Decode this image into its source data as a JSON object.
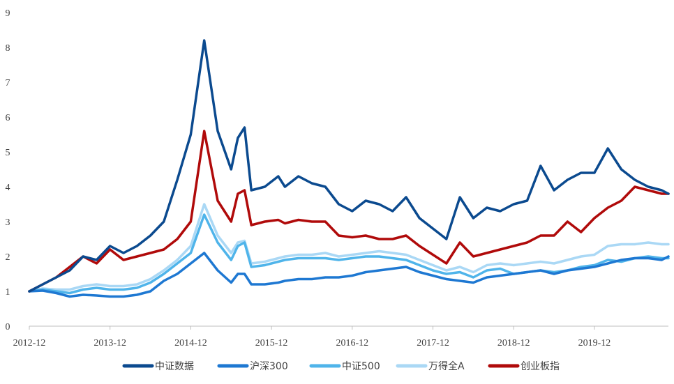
{
  "chart_data": {
    "type": "line",
    "title": "",
    "xlabel": "",
    "ylabel": "",
    "ylim": [
      0,
      9
    ],
    "yticks": [
      "0",
      "1",
      "2",
      "3",
      "4",
      "5",
      "6",
      "7",
      "8",
      "9"
    ],
    "x_range": [
      "2012-12",
      "2020-11"
    ],
    "xticks": [
      "2012-12",
      "2013-12",
      "2014-12",
      "2015-12",
      "2016-12",
      "2017-12",
      "2018-12",
      "2019-12"
    ],
    "grid": false,
    "legend": "bottom",
    "x": [
      "2012-12",
      "2013-02",
      "2013-04",
      "2013-06",
      "2013-08",
      "2013-10",
      "2013-12",
      "2014-02",
      "2014-04",
      "2014-06",
      "2014-08",
      "2014-10",
      "2014-12",
      "2015-02",
      "2015-04",
      "2015-06",
      "2015-07",
      "2015-08",
      "2015-09",
      "2015-11",
      "2016-01",
      "2016-02",
      "2016-04",
      "2016-06",
      "2016-08",
      "2016-10",
      "2016-12",
      "2017-02",
      "2017-04",
      "2017-06",
      "2017-08",
      "2017-10",
      "2017-12",
      "2018-02",
      "2018-04",
      "2018-06",
      "2018-08",
      "2018-10",
      "2018-12",
      "2019-02",
      "2019-04",
      "2019-06",
      "2019-08",
      "2019-10",
      "2019-12",
      "2020-02",
      "2020-04",
      "2020-06",
      "2020-08",
      "2020-10",
      "2020-11"
    ],
    "series": [
      {
        "name": "中证数据",
        "color": "#0B4A8F",
        "values": [
          1.0,
          1.2,
          1.4,
          1.6,
          2.0,
          1.9,
          2.3,
          2.1,
          2.3,
          2.6,
          3.0,
          4.2,
          5.5,
          8.2,
          5.6,
          4.5,
          5.4,
          5.7,
          3.9,
          4.0,
          4.3,
          4.0,
          4.3,
          4.1,
          4.0,
          3.5,
          3.3,
          3.6,
          3.5,
          3.3,
          3.7,
          3.1,
          2.8,
          2.5,
          3.7,
          3.1,
          3.4,
          3.3,
          3.5,
          3.6,
          4.6,
          3.9,
          4.2,
          4.4,
          4.4,
          5.1,
          4.5,
          4.2,
          4.0,
          3.9,
          3.8
        ]
      },
      {
        "name": "沪深300",
        "color": "#1E78D2",
        "values": [
          1.0,
          1.02,
          0.95,
          0.85,
          0.9,
          0.88,
          0.85,
          0.85,
          0.9,
          1.0,
          1.3,
          1.5,
          1.8,
          2.1,
          1.6,
          1.25,
          1.5,
          1.5,
          1.2,
          1.2,
          1.25,
          1.3,
          1.35,
          1.35,
          1.4,
          1.4,
          1.45,
          1.55,
          1.6,
          1.65,
          1.7,
          1.55,
          1.45,
          1.35,
          1.3,
          1.25,
          1.4,
          1.45,
          1.5,
          1.55,
          1.6,
          1.5,
          1.6,
          1.65,
          1.7,
          1.8,
          1.9,
          1.95,
          1.95,
          1.9,
          2.0
        ]
      },
      {
        "name": "中证500",
        "color": "#4FB4EA",
        "values": [
          1.0,
          1.05,
          1.0,
          0.95,
          1.05,
          1.1,
          1.05,
          1.05,
          1.1,
          1.25,
          1.5,
          1.8,
          2.1,
          3.2,
          2.4,
          1.9,
          2.3,
          2.4,
          1.7,
          1.75,
          1.85,
          1.9,
          1.95,
          1.95,
          1.95,
          1.9,
          1.95,
          2.0,
          2.0,
          1.95,
          1.9,
          1.75,
          1.6,
          1.5,
          1.55,
          1.4,
          1.6,
          1.65,
          1.5,
          1.55,
          1.6,
          1.55,
          1.6,
          1.7,
          1.75,
          1.9,
          1.85,
          1.95,
          2.0,
          1.95,
          1.95
        ]
      },
      {
        "name": "万得全A",
        "color": "#AAD8F5",
        "values": [
          1.0,
          1.08,
          1.05,
          1.05,
          1.15,
          1.2,
          1.15,
          1.15,
          1.2,
          1.35,
          1.6,
          1.9,
          2.3,
          3.5,
          2.6,
          2.1,
          2.4,
          2.45,
          1.8,
          1.85,
          1.95,
          2.0,
          2.05,
          2.05,
          2.1,
          2.0,
          2.05,
          2.1,
          2.15,
          2.1,
          2.05,
          1.9,
          1.75,
          1.6,
          1.7,
          1.55,
          1.75,
          1.8,
          1.75,
          1.8,
          1.85,
          1.8,
          1.9,
          2.0,
          2.05,
          2.3,
          2.35,
          2.35,
          2.4,
          2.35,
          2.35
        ]
      },
      {
        "name": "创业板指",
        "color": "#B00A0A",
        "values": [
          1.0,
          1.2,
          1.4,
          1.7,
          2.0,
          1.8,
          2.2,
          1.9,
          2.0,
          2.1,
          2.2,
          2.5,
          3.0,
          5.6,
          3.6,
          3.0,
          3.8,
          3.9,
          2.9,
          3.0,
          3.05,
          2.95,
          3.05,
          3.0,
          3.0,
          2.6,
          2.55,
          2.6,
          2.5,
          2.5,
          2.6,
          2.3,
          2.05,
          1.8,
          2.4,
          2.0,
          2.1,
          2.2,
          2.3,
          2.4,
          2.6,
          2.6,
          3.0,
          2.7,
          3.1,
          3.4,
          3.6,
          4.0,
          3.9,
          3.8,
          3.8
        ]
      }
    ]
  }
}
